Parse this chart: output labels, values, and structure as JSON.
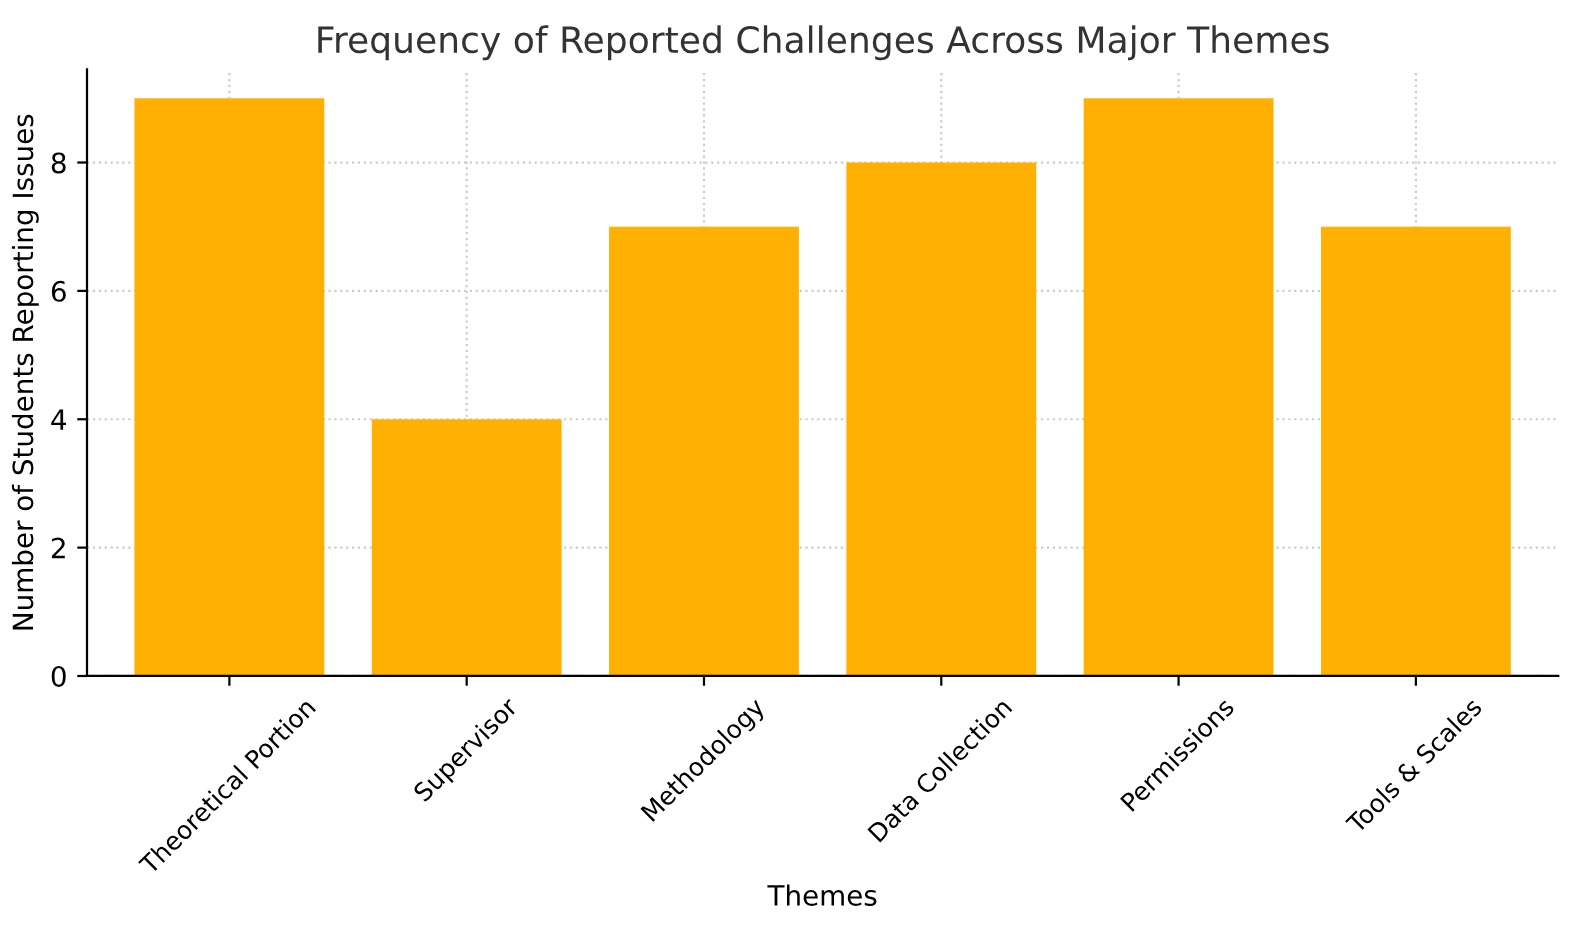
{
  "chart_data": {
    "type": "bar",
    "title": "Frequency of Reported Challenges Across Major Themes",
    "xlabel": "Themes",
    "ylabel": "Number of Students Reporting Issues",
    "categories": [
      "Theoretical Portion",
      "Supervisor",
      "Methodology",
      "Data Collection",
      "Permissions",
      "Tools & Scales"
    ],
    "values": [
      9,
      4,
      7,
      8,
      9,
      7
    ],
    "color": "#ffb000",
    "ylim": [
      0,
      9.45
    ],
    "yticks": [
      0,
      2,
      4,
      6,
      8
    ],
    "grid": true
  }
}
